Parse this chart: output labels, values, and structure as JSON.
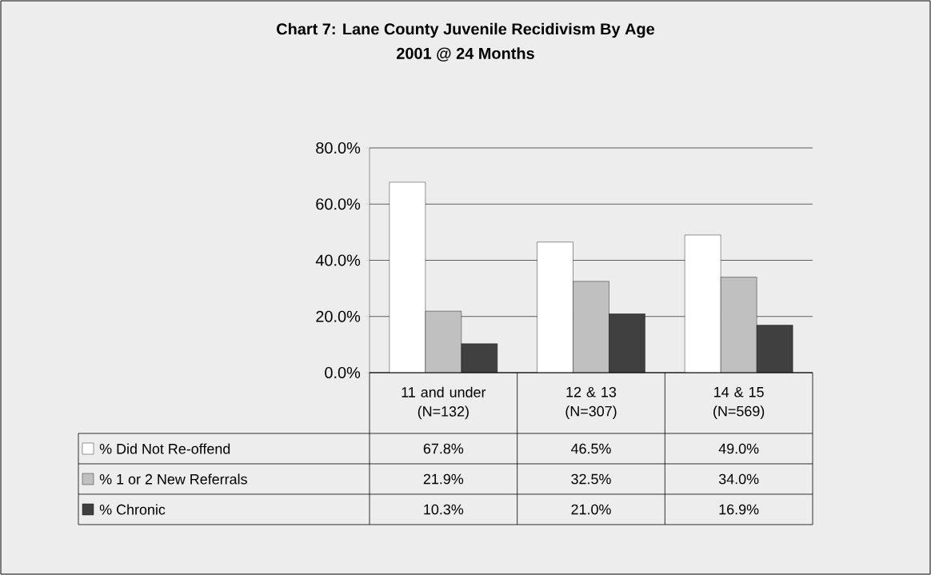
{
  "chart_data": {
    "type": "bar",
    "title": "Chart 7: Lane County Juvenile Recidivism By Age",
    "subtitle": "2001 @ 24 Months",
    "categories": [
      "11 and under (N=132)",
      "12 & 13 (N=307)",
      "14 & 15 (N=569)"
    ],
    "series": [
      {
        "name": "% Did Not Re-offend",
        "color": "#ffffff",
        "values": [
          67.8,
          46.5,
          49.0
        ],
        "value_labels": [
          "67.8%",
          "46.5%",
          "49.0%"
        ]
      },
      {
        "name": "% 1 or 2 New Referrals",
        "color": "#c0c0c0",
        "values": [
          21.9,
          32.5,
          34.0
        ],
        "value_labels": [
          "21.9%",
          "32.5%",
          "34.0%"
        ]
      },
      {
        "name": "% Chronic",
        "color": "#404040",
        "values": [
          10.3,
          21.0,
          16.9
        ],
        "value_labels": [
          "10.3%",
          "21.0%",
          "16.9%"
        ]
      }
    ],
    "ylim": [
      0,
      80
    ],
    "yticks": [
      {
        "value": 0,
        "label": "0.0%"
      },
      {
        "value": 20,
        "label": "20.0%"
      },
      {
        "value": 40,
        "label": "40.0%"
      },
      {
        "value": 60,
        "label": "60.0%"
      },
      {
        "value": 80,
        "label": "80.0%"
      }
    ],
    "grid": "y",
    "legend": "bottom"
  }
}
